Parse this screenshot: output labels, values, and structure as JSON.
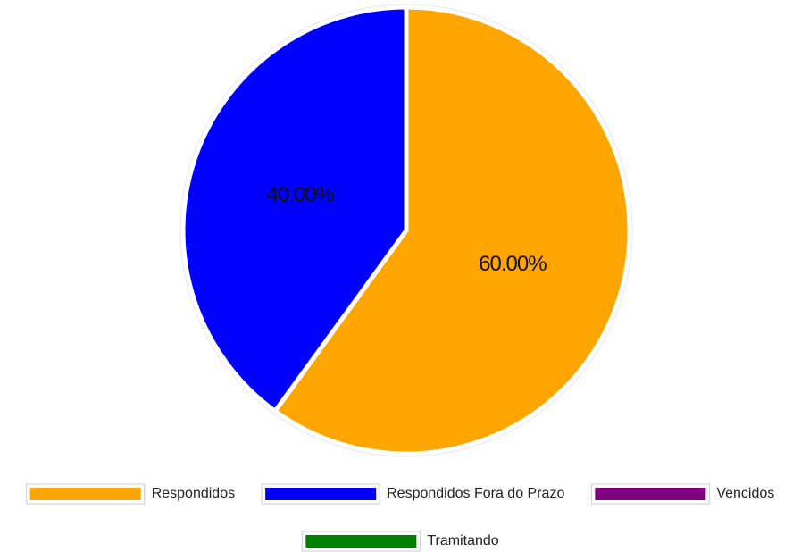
{
  "chart_data": {
    "type": "pie",
    "categories": [
      "Respondidos",
      "Respondidos Fora do Prazo",
      "Vencidos",
      "Tramitando"
    ],
    "values": [
      60,
      40,
      0,
      0
    ],
    "value_labels": [
      "60.00%",
      "40.00%",
      "",
      ""
    ],
    "colors": [
      "#FFA500",
      "#0000FF",
      "#800080",
      "#008000"
    ],
    "title": "",
    "legend_position": "bottom"
  }
}
